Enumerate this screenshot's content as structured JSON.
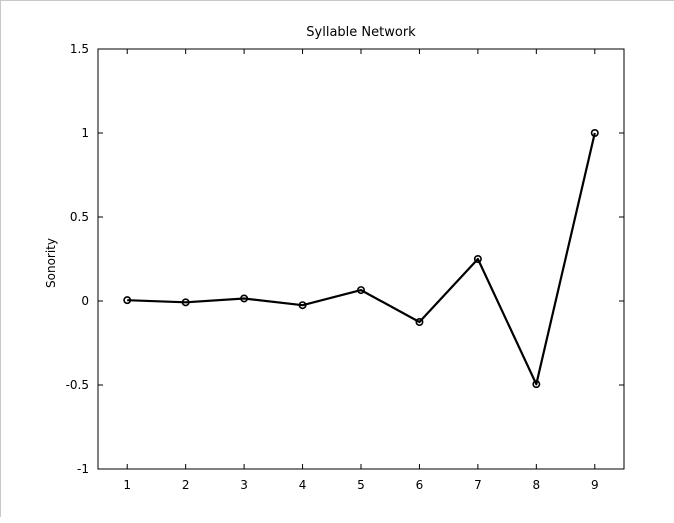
{
  "chart_data": {
    "type": "line",
    "title": "Syllable Network",
    "xlabel": "",
    "ylabel": "Sonority",
    "xlim": [
      0.5,
      9.5
    ],
    "ylim": [
      -1,
      1.5
    ],
    "x_ticks": [
      "1",
      "2",
      "3",
      "4",
      "5",
      "6",
      "7",
      "8",
      "9"
    ],
    "y_ticks": [
      "-1",
      "-0.5",
      "0",
      "0.5",
      "1",
      "1.5"
    ],
    "grid": false,
    "series": [
      {
        "x": [
          1,
          2,
          3,
          4,
          5,
          6,
          7,
          8,
          9
        ],
        "values": [
          0.005,
          -0.008,
          0.015,
          -0.025,
          0.065,
          -0.125,
          0.25,
          -0.495,
          1.0
        ],
        "color": "#000000",
        "marker": "circle"
      }
    ]
  }
}
